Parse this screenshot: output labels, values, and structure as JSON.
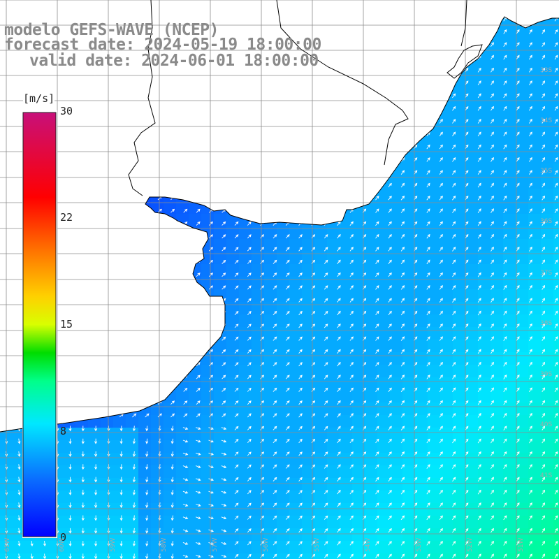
{
  "title": {
    "line1": "modelo GEFS-WAVE (NCEP)",
    "line2": "forecast date: 2024-05-19 18:00:00",
    "line3": "valid date: 2024-06-01 18:00:00"
  },
  "colorbar": {
    "unit": "[m/s]",
    "min": 0,
    "max": 30,
    "tick_labels": [
      "30",
      "22",
      "15",
      "8",
      "0"
    ],
    "tick_values": [
      30,
      22,
      15,
      8,
      0
    ],
    "stops": [
      {
        "v": 0,
        "color": "#0000ff"
      },
      {
        "v": 4,
        "color": "#0a6cff"
      },
      {
        "v": 8,
        "color": "#00e8ff"
      },
      {
        "v": 11,
        "color": "#00ff8a"
      },
      {
        "v": 13,
        "color": "#00dd00"
      },
      {
        "v": 15,
        "color": "#d8ff00"
      },
      {
        "v": 17,
        "color": "#ffd000"
      },
      {
        "v": 20,
        "color": "#ff7a00"
      },
      {
        "v": 24,
        "color": "#ff0000"
      },
      {
        "v": 30,
        "color": "#c8107a"
      }
    ]
  },
  "map": {
    "variable": "wind speed with direction arrows",
    "land_color": "#ffffff",
    "grid_color": "#8c8c8c",
    "coast_color": "#000000",
    "arrow_color": "#ffffff",
    "lon_labels": [
      "61W",
      "60W",
      "59W",
      "58W",
      "57W",
      "56W",
      "55W",
      "54W",
      "53W",
      "52W",
      "51W"
    ],
    "lat_labels": [
      "33S",
      "34S",
      "35S",
      "36S",
      "37S",
      "38S",
      "39S",
      "40S",
      "41S"
    ],
    "regions": {
      "nearshore_speed": 3,
      "open_sea_speed": 6,
      "southeast_speed": 11
    }
  }
}
